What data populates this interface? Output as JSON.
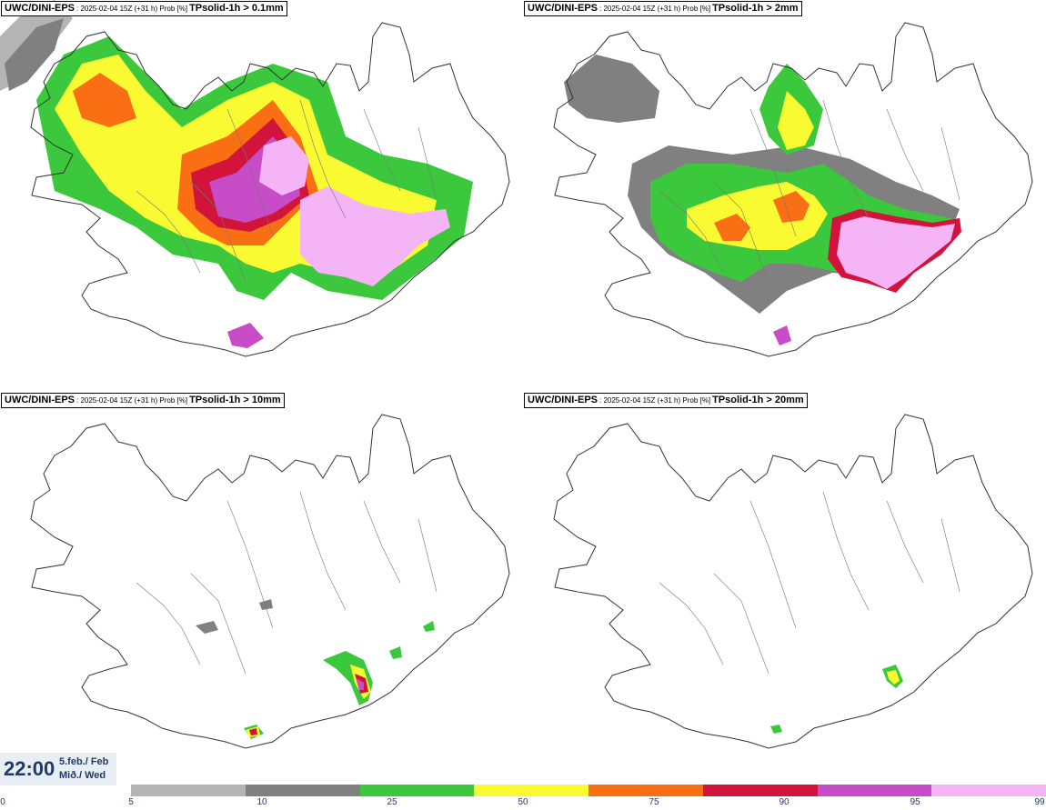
{
  "panels": [
    {
      "model": "UWC/DINI-EPS",
      "meta": ": 2025-02-04 15Z (+31 h) Prob [%]",
      "variable": "TPsolid-1h > 0.1mm"
    },
    {
      "model": "UWC/DINI-EPS",
      "meta": ": 2025-02-04 15Z (+31 h) Prob [%]",
      "variable": "TPsolid-1h > 2mm"
    },
    {
      "model": "UWC/DINI-EPS",
      "meta": ": 2025-02-04 15Z (+31 h) Prob [%]",
      "variable": "TPsolid-1h > 10mm"
    },
    {
      "model": "UWC/DINI-EPS",
      "meta": ": 2025-02-04 15Z (+31 h) Prob [%]",
      "variable": "TPsolid-1h > 20mm"
    }
  ],
  "valid_time": {
    "time": "22:00",
    "date_line1": "5.feb./ Feb",
    "date_line2": "Mið./ Wed"
  },
  "colorbar": {
    "ticks": [
      "0",
      "5",
      "10",
      "25",
      "50",
      "75",
      "90",
      "95",
      "99"
    ],
    "colors": [
      "#b4b4b4",
      "#808080",
      "#3cc83c",
      "#fafa32",
      "#fa6e14",
      "#d2143c",
      "#c84bc8",
      "#f5b4f5"
    ]
  },
  "colors": {
    "coast": "#333333",
    "river": "#777777",
    "time_text": "#1f3a64",
    "time_box": "#e9eef4"
  }
}
